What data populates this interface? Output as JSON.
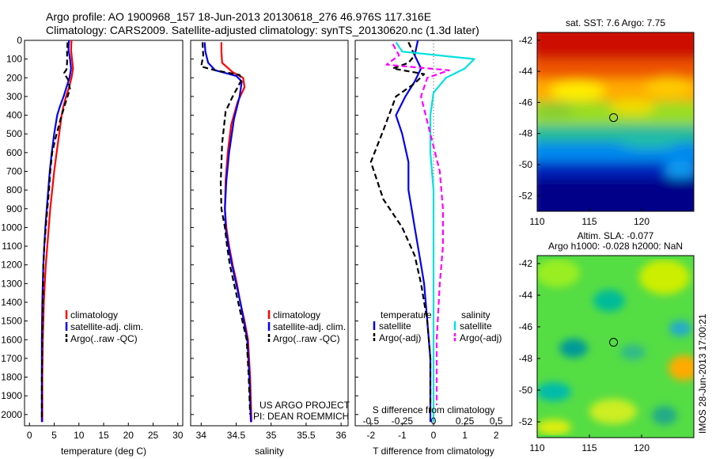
{
  "header": {
    "line1": "Argo profile: AO 1900968_157 18-Jun-2013 20130618_276 46.976S 117.316E",
    "line2": "Climatology: CARS2009. Satellite-adjusted climatology: synTS_20130620.nc (1.3d later)"
  },
  "credits": {
    "project": "US ARGO PROJECT",
    "pi": "PI: DEAN ROEMMICH",
    "timestamp": "IMOS 28-Jun-2013 17:00:21"
  },
  "colors": {
    "climatology": "#ff0000",
    "satellite": "#0000ee",
    "argo": "#000000",
    "satellite_s": "#00e0e0",
    "argo_s": "#ff00ff",
    "circle": "#000000"
  },
  "chart_data": [
    {
      "id": "temperature",
      "type": "line",
      "xlabel": "temperature (deg C)",
      "ylabel": "",
      "xlim": [
        -1,
        31
      ],
      "ylim": [
        2060,
        0
      ],
      "xticks": [
        0,
        5,
        10,
        15,
        20,
        25,
        30
      ],
      "yticks": [
        0,
        100,
        200,
        300,
        400,
        500,
        600,
        700,
        800,
        900,
        1000,
        1100,
        1200,
        1300,
        1400,
        1500,
        1600,
        1700,
        1800,
        1900,
        2000
      ],
      "legend": {
        "placement": "lower-center",
        "entries": [
          "climatology",
          "satellite-adj. clim.",
          "Argo(..raw -QC)"
        ]
      },
      "series": [
        {
          "name": "climatology",
          "style": "solid",
          "color": "#ff0000",
          "x": [
            8.5,
            8.4,
            8.6,
            8.8,
            8.5,
            8.0,
            7.4,
            6.9,
            6.5,
            6.0,
            5.5,
            5.0,
            4.6,
            4.2,
            3.9,
            3.6,
            3.3,
            3.1,
            2.9,
            2.8,
            2.7,
            2.6,
            2.6
          ],
          "y": [
            0,
            50,
            100,
            150,
            200,
            250,
            300,
            350,
            400,
            500,
            600,
            700,
            800,
            900,
            1000,
            1100,
            1200,
            1300,
            1400,
            1500,
            1600,
            1800,
            2040
          ]
        },
        {
          "name": "satellite-adj. clim.",
          "style": "solid",
          "color": "#0000ee",
          "x": [
            8.0,
            7.9,
            8.2,
            8.4,
            8.1,
            7.5,
            6.9,
            6.2,
            5.6,
            5.0,
            4.5,
            4.1,
            3.8,
            3.5,
            3.2,
            3.0,
            2.8,
            2.7,
            2.6,
            2.5,
            2.5,
            2.5
          ],
          "y": [
            0,
            50,
            100,
            150,
            200,
            250,
            300,
            350,
            400,
            500,
            600,
            700,
            800,
            900,
            1000,
            1100,
            1200,
            1300,
            1400,
            1600,
            1800,
            2040
          ]
        },
        {
          "name": "Argo(..raw -QC)",
          "style": "dashed",
          "color": "#000000",
          "x": [
            7.7,
            7.6,
            7.6,
            7.5,
            7.0,
            7.8,
            8.2,
            7.2,
            6.3,
            5.3,
            4.6,
            4.2,
            4.0,
            3.8,
            3.6,
            3.3,
            3.0,
            2.8,
            2.7,
            2.6,
            2.5,
            2.5
          ],
          "y": [
            10,
            60,
            120,
            155,
            175,
            210,
            260,
            340,
            420,
            520,
            600,
            700,
            780,
            850,
            900,
            1000,
            1100,
            1200,
            1400,
            1600,
            1800,
            2020
          ]
        }
      ]
    },
    {
      "id": "salinity",
      "type": "line",
      "xlabel": "salinity",
      "ylabel": "",
      "xlim": [
        33.85,
        36.1
      ],
      "ylim": [
        2060,
        0
      ],
      "xticks": [
        34,
        34.5,
        35,
        35.5,
        36
      ],
      "xtick_labels": [
        "34",
        "34.5",
        "35",
        "35.5",
        "36"
      ],
      "legend": {
        "placement": "lower-right",
        "entries": [
          "climatology",
          "satellite-adj. clim.",
          "Argo(..raw -QC)"
        ]
      },
      "series": [
        {
          "name": "climatology",
          "style": "solid",
          "color": "#ff0000",
          "x": [
            34.29,
            34.29,
            34.3,
            34.45,
            34.6,
            34.62,
            34.52,
            34.43,
            34.38,
            34.35,
            34.34,
            34.36,
            34.4,
            34.45,
            34.51,
            34.56,
            34.62,
            34.67,
            34.7,
            34.72
          ],
          "y": [
            10,
            60,
            120,
            170,
            200,
            250,
            330,
            450,
            600,
            750,
            900,
            1000,
            1100,
            1200,
            1300,
            1400,
            1500,
            1600,
            1800,
            2040
          ]
        },
        {
          "name": "satellite-adj. clim.",
          "style": "solid",
          "color": "#0000ee",
          "x": [
            34.05,
            34.06,
            34.1,
            34.2,
            34.5,
            34.58,
            34.55,
            34.47,
            34.4,
            34.36,
            34.34,
            34.35,
            34.39,
            34.44,
            34.5,
            34.56,
            34.61,
            34.66,
            34.69,
            34.71
          ],
          "y": [
            10,
            60,
            120,
            160,
            190,
            220,
            300,
            420,
            600,
            750,
            900,
            1000,
            1100,
            1200,
            1300,
            1400,
            1500,
            1600,
            1800,
            2040
          ]
        },
        {
          "name": "Argo(..raw -QC)",
          "style": "dashed",
          "color": "#000000",
          "x": [
            34.02,
            34.03,
            34.0,
            34.2,
            34.55,
            34.58,
            34.45,
            34.35,
            34.3,
            34.28,
            34.29,
            34.34,
            34.37,
            34.41,
            34.47,
            34.53,
            34.59,
            34.65,
            34.68,
            34.7
          ],
          "y": [
            10,
            80,
            140,
            160,
            185,
            210,
            300,
            380,
            550,
            760,
            900,
            1000,
            1100,
            1200,
            1300,
            1400,
            1500,
            1600,
            1800,
            2000
          ]
        }
      ]
    },
    {
      "id": "difference",
      "type": "line",
      "xlabel": "T difference from climatology",
      "xlabel_top": "S difference from climatology",
      "xlim": [
        -2.5,
        2.5
      ],
      "ylim": [
        2060,
        0
      ],
      "xticks": [
        -2,
        -1,
        0,
        1,
        2
      ],
      "xticks_top": [
        -0.5,
        -0.25,
        0,
        0.25,
        0.5
      ],
      "xtick_labels_top": [
        "-0.5",
        "-0.25",
        "0",
        "0.25",
        "0.5"
      ],
      "legend": {
        "placement": "lower-center",
        "headers": [
          "temperature",
          "salinity"
        ],
        "entries": [
          "satellite",
          "Argo(-adj)",
          "satellite",
          "Argo(-adj)"
        ]
      },
      "series": [
        {
          "name": "temperature satellite",
          "style": "solid",
          "color": "#0000ee",
          "x": [
            -0.5,
            -0.6,
            -0.4,
            -0.6,
            -0.9,
            -1.2,
            -1.0,
            -0.8,
            -0.8,
            -0.7,
            -0.6,
            -0.5,
            -0.4,
            -0.3,
            -0.2,
            -0.1,
            -0.1
          ],
          "y": [
            0,
            80,
            150,
            220,
            300,
            400,
            500,
            650,
            800,
            900,
            1000,
            1100,
            1200,
            1300,
            1500,
            1700,
            2040
          ]
        },
        {
          "name": "temperature Argo(-adj)",
          "style": "dashed",
          "color": "#000000",
          "x": [
            -0.8,
            -0.6,
            -0.8,
            -1.3,
            -0.3,
            -0.6,
            -1.2,
            -1.6,
            -2.0,
            -1.6,
            -1.0,
            -0.6,
            -0.4,
            -0.2,
            -0.1,
            -0.1
          ],
          "y": [
            10,
            80,
            120,
            150,
            180,
            230,
            300,
            480,
            650,
            850,
            1000,
            1150,
            1300,
            1500,
            1700,
            2000
          ]
        },
        {
          "name": "salinity satellite",
          "style": "solid",
          "color": "#00e0e0",
          "x": [
            -1.2,
            -1.0,
            1.3,
            1.0,
            0.4,
            0.0,
            -0.1,
            -0.1,
            0.0,
            0.0,
            0.0,
            0.0,
            0.0,
            0.0
          ],
          "y": [
            10,
            60,
            100,
            150,
            200,
            280,
            400,
            600,
            800,
            1000,
            1200,
            1500,
            1800,
            2040
          ]
        },
        {
          "name": "salinity Argo(-adj)",
          "style": "dashed",
          "color": "#ff00ff",
          "x": [
            -1.3,
            -1.1,
            -1.5,
            0.5,
            -0.2,
            -0.4,
            -0.1,
            0.2,
            0.3,
            0.3,
            0.2,
            0.1,
            0.1
          ],
          "y": [
            20,
            80,
            130,
            160,
            200,
            300,
            500,
            700,
            900,
            1100,
            1300,
            1600,
            1950
          ]
        }
      ]
    },
    {
      "id": "sst-map",
      "type": "heatmap",
      "title": "sat. SST: 7.6 Argo: 7.75",
      "xlim": [
        110,
        125
      ],
      "ylim": [
        -53,
        -41.5
      ],
      "xticks": [
        110,
        115,
        120
      ],
      "yticks": [
        -42,
        -44,
        -46,
        -48,
        -50,
        -52
      ],
      "marker": {
        "lon": 117.316,
        "lat": -46.976
      },
      "colormap": "jet"
    },
    {
      "id": "sla-map",
      "type": "heatmap",
      "title": "Altim. SLA: -0.077",
      "subtitle": "Argo h1000: -0.028 h2000: NaN",
      "xlim": [
        110,
        125
      ],
      "ylim": [
        -53,
        -41.5
      ],
      "xticks": [
        110,
        115,
        120
      ],
      "yticks": [
        -42,
        -44,
        -46,
        -48,
        -50,
        -52
      ],
      "marker": {
        "lon": 117.316,
        "lat": -46.976
      },
      "colormap": "jet"
    }
  ]
}
